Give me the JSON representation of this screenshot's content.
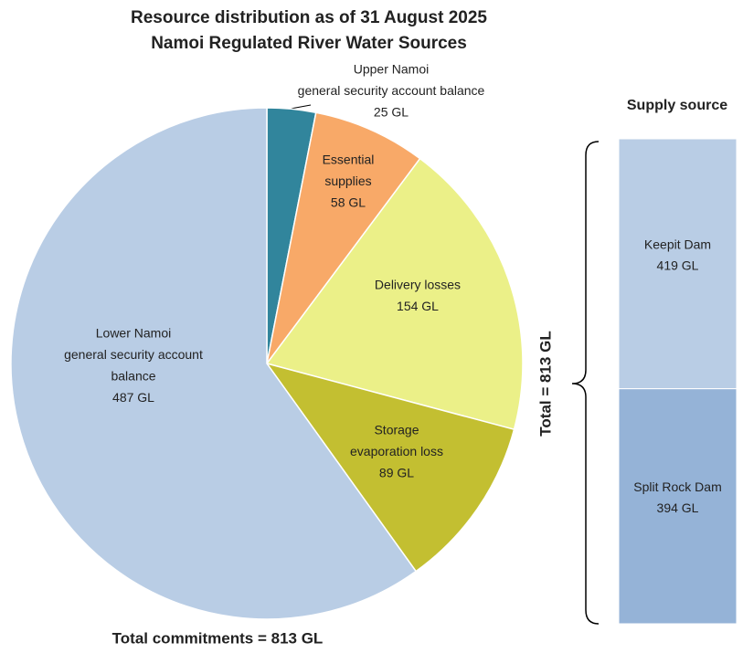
{
  "chart_data": [
    {
      "type": "pie",
      "title": "Resource distribution as of 31 August 2025",
      "subtitle": "Namoi Regulated River Water Sources",
      "categories": [
        [
          "Upper Namoi",
          "general security account balance"
        ],
        [
          "Essential",
          "supplies"
        ],
        [
          "Delivery losses"
        ],
        [
          "Storage",
          "evaporation loss"
        ],
        [
          "Lower Namoi",
          "general security account",
          "balance"
        ]
      ],
      "values": [
        25,
        58,
        154,
        89,
        487
      ],
      "value_labels": [
        "25 GL",
        "58 GL",
        "154 GL",
        "89 GL",
        "487 GL"
      ],
      "colors": [
        "#31859c",
        "#f8a968",
        "#ebf088",
        "#c3bf31",
        "#b9cde5"
      ],
      "annotation": "Total commitments = 813 GL"
    },
    {
      "type": "stacked_bar",
      "title": "Supply source",
      "categories": [
        "Keepit Dam",
        "Split Rock Dam"
      ],
      "values": [
        419,
        394
      ],
      "value_labels": [
        "419 GL",
        "394 GL"
      ],
      "colors": [
        "#b9cde5",
        "#95b3d7"
      ],
      "annotation": "Total = 813 GL"
    }
  ]
}
